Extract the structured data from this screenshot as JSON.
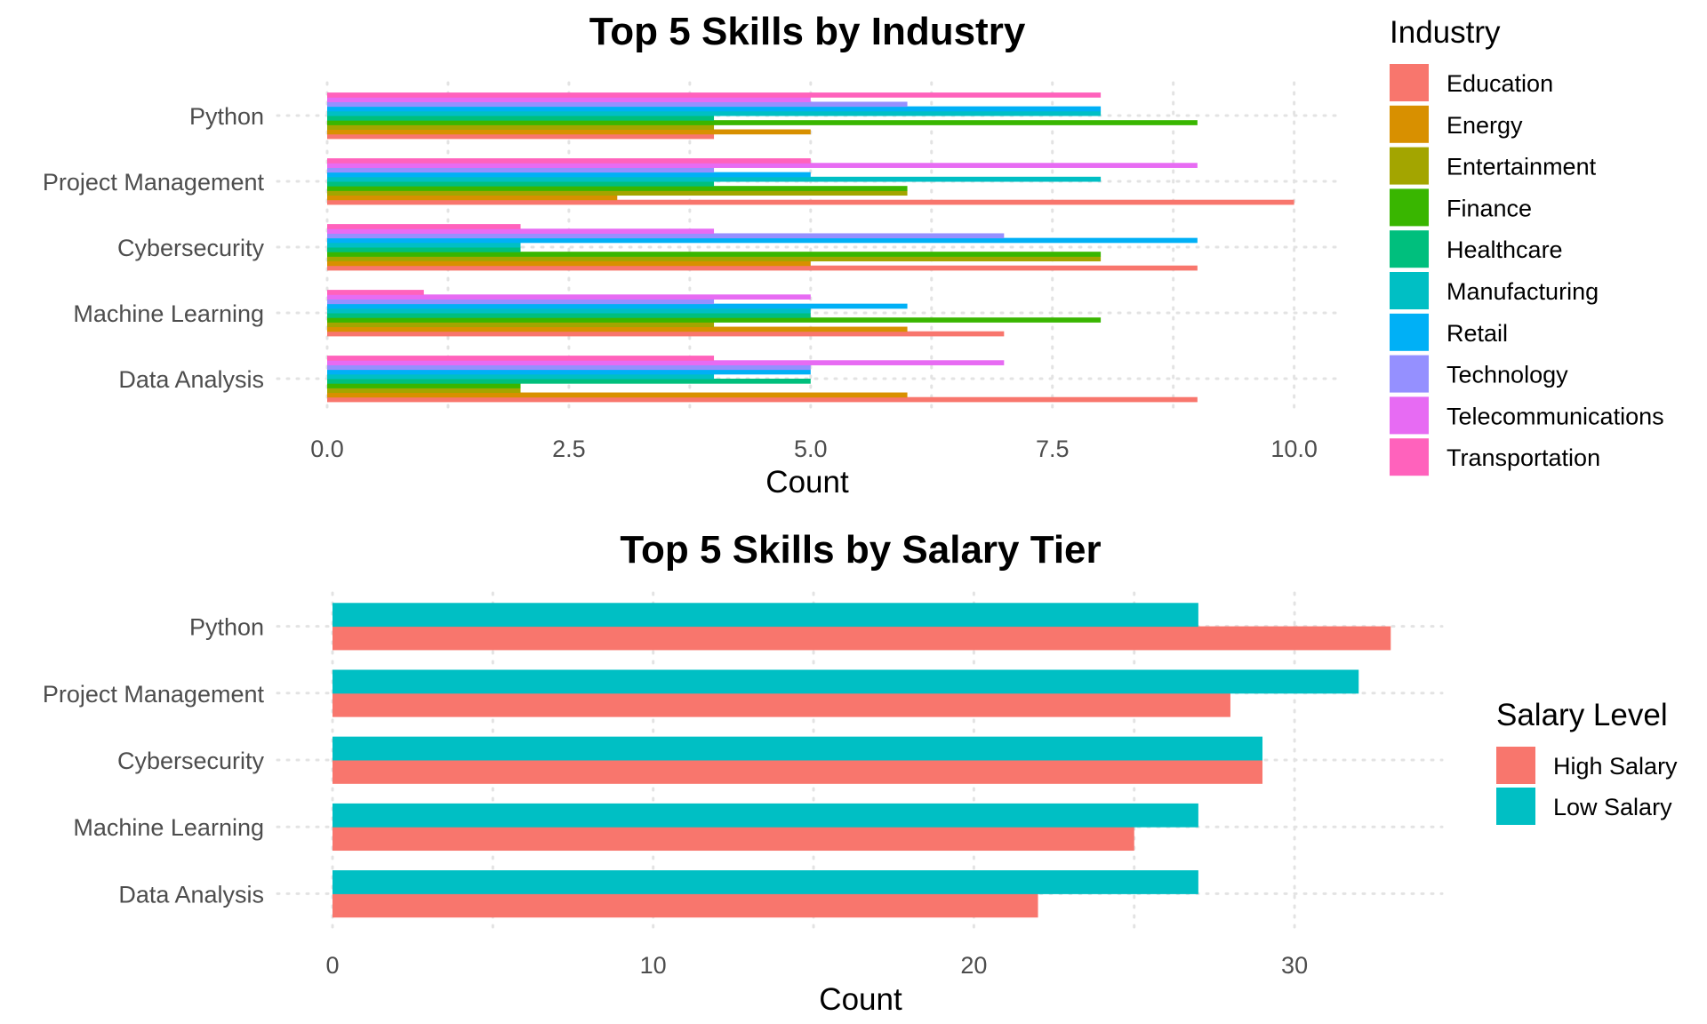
{
  "chart_data": [
    {
      "type": "bar",
      "orientation": "horizontal",
      "title": "Top 5 Skills by Industry",
      "xlabel": "Count",
      "ylabel": "",
      "xlim": [
        0,
        10.5
      ],
      "xticks": [
        0,
        2.5,
        5,
        7.5,
        10
      ],
      "xtick_labels": [
        "0.0",
        "2.5",
        "5.0",
        "7.5",
        "10.0"
      ],
      "categories": [
        "Python",
        "Project Management",
        "Cybersecurity",
        "Machine Learning",
        "Data Analysis"
      ],
      "grid": true,
      "legend": {
        "title": "Industry",
        "position": "right"
      },
      "series": [
        {
          "name": "Education",
          "color": "#F8766D",
          "values": [
            4,
            10,
            9,
            7,
            9
          ]
        },
        {
          "name": "Energy",
          "color": "#D89000",
          "values": [
            5,
            3,
            5,
            6,
            6
          ]
        },
        {
          "name": "Entertainment",
          "color": "#A3A500",
          "values": [
            4,
            6,
            8,
            4,
            2
          ]
        },
        {
          "name": "Finance",
          "color": "#39B600",
          "values": [
            9,
            6,
            8,
            8,
            2
          ]
        },
        {
          "name": "Healthcare",
          "color": "#00BF7D",
          "values": [
            4,
            4,
            2,
            5,
            5
          ]
        },
        {
          "name": "Manufacturing",
          "color": "#00BFC4",
          "values": [
            8,
            8,
            2,
            5,
            4
          ]
        },
        {
          "name": "Retail",
          "color": "#00B0F6",
          "values": [
            8,
            5,
            9,
            6,
            5
          ]
        },
        {
          "name": "Technology",
          "color": "#9590FF",
          "values": [
            6,
            4,
            7,
            4,
            5
          ]
        },
        {
          "name": "Telecommunications",
          "color": "#E76BF3",
          "values": [
            5,
            9,
            4,
            5,
            7
          ]
        },
        {
          "name": "Transportation",
          "color": "#FF62BC",
          "values": [
            8,
            5,
            2,
            1,
            4
          ]
        }
      ]
    },
    {
      "type": "bar",
      "orientation": "horizontal",
      "title": "Top 5 Skills by Salary Tier",
      "xlabel": "Count",
      "ylabel": "",
      "xlim": [
        0,
        34.6
      ],
      "xticks": [
        0,
        10,
        20,
        30
      ],
      "xtick_labels": [
        "0",
        "10",
        "20",
        "30"
      ],
      "categories": [
        "Python",
        "Project Management",
        "Cybersecurity",
        "Machine Learning",
        "Data Analysis"
      ],
      "grid": true,
      "legend": {
        "title": "Salary Level",
        "position": "right"
      },
      "series": [
        {
          "name": "High Salary",
          "color": "#F8766D",
          "values": [
            33,
            28,
            29,
            25,
            22
          ]
        },
        {
          "name": "Low Salary",
          "color": "#00BFC4",
          "values": [
            27,
            32,
            29,
            27,
            27
          ]
        }
      ]
    }
  ]
}
